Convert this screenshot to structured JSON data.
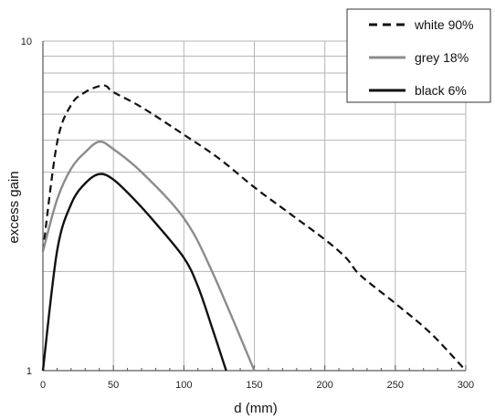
{
  "chart_data": {
    "type": "line",
    "title": "",
    "xlabel": "d (mm)",
    "ylabel": "excess gain",
    "xlim": [
      0,
      300
    ],
    "ylim": [
      1,
      10
    ],
    "yscale": "log",
    "grid": true,
    "legend_position": "top-right",
    "x_ticks": [
      0,
      50,
      100,
      150,
      200,
      250,
      300
    ],
    "y_tick_labels": [
      {
        "value": 1,
        "label": "1"
      },
      {
        "value": 10,
        "label": "10"
      }
    ],
    "y_minor_gridlines": [
      2,
      3,
      4,
      5,
      6,
      7,
      8,
      9
    ],
    "series": [
      {
        "name": "white 90%",
        "color": "#111111",
        "style": "dashed",
        "points": [
          [
            0,
            2.3
          ],
          [
            10,
            4.9
          ],
          [
            20,
            6.4
          ],
          [
            30,
            7.0
          ],
          [
            40,
            7.3
          ],
          [
            45,
            7.3
          ],
          [
            50,
            7.0
          ],
          [
            70,
            6.3
          ],
          [
            100,
            5.2
          ],
          [
            125,
            4.4
          ],
          [
            150,
            3.6
          ],
          [
            175,
            3.0
          ],
          [
            200,
            2.5
          ],
          [
            215,
            2.2
          ],
          [
            225,
            1.95
          ],
          [
            250,
            1.6
          ],
          [
            275,
            1.3
          ],
          [
            300,
            1.0
          ]
        ]
      },
      {
        "name": "grey 18%",
        "color": "#8c8c8c",
        "style": "solid",
        "points": [
          [
            0,
            2.3
          ],
          [
            10,
            3.3
          ],
          [
            20,
            4.1
          ],
          [
            30,
            4.6
          ],
          [
            40,
            4.95
          ],
          [
            50,
            4.7
          ],
          [
            70,
            4.0
          ],
          [
            100,
            2.9
          ],
          [
            120,
            2.0
          ],
          [
            150,
            1.0
          ]
        ]
      },
      {
        "name": "black 6%",
        "color": "#111111",
        "style": "solid",
        "points": [
          [
            0,
            1.0
          ],
          [
            10,
            2.3
          ],
          [
            20,
            3.2
          ],
          [
            30,
            3.7
          ],
          [
            40,
            3.95
          ],
          [
            50,
            3.8
          ],
          [
            65,
            3.3
          ],
          [
            80,
            2.8
          ],
          [
            100,
            2.2
          ],
          [
            110,
            1.8
          ],
          [
            120,
            1.35
          ],
          [
            130,
            1.0
          ]
        ]
      }
    ]
  }
}
